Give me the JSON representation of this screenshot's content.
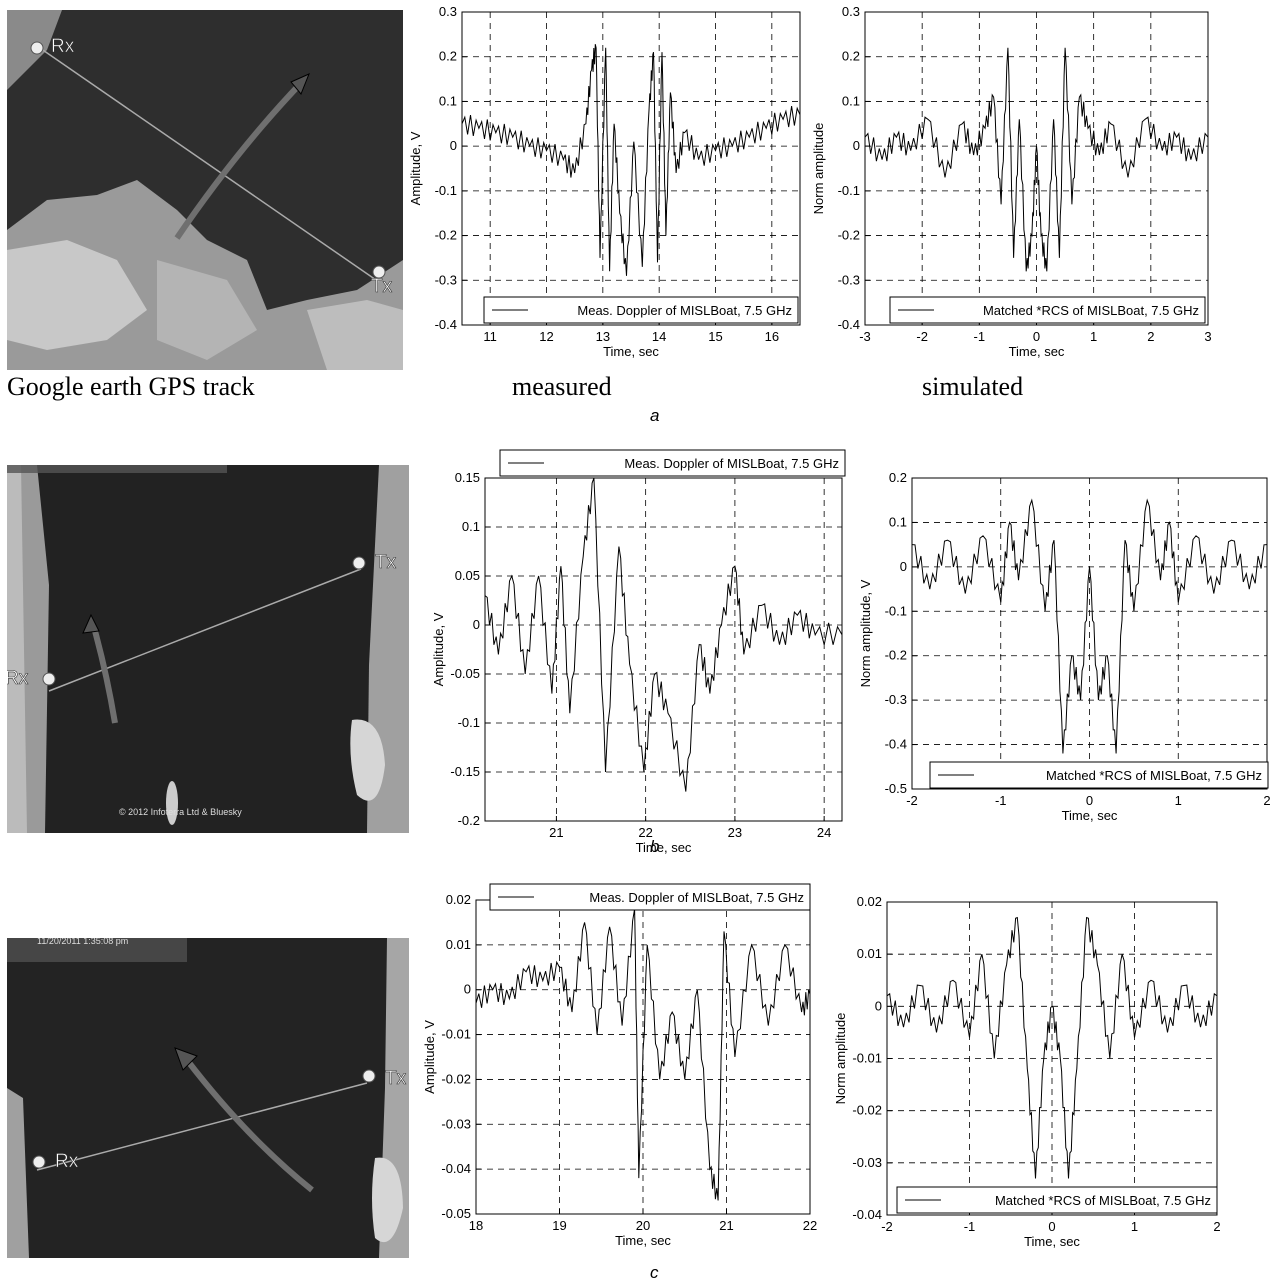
{
  "captions": {
    "map": "Google earth GPS track",
    "measured": "measured",
    "simulated": "simulated"
  },
  "panel_letters": [
    "a",
    "b",
    "c"
  ],
  "maps": [
    {
      "rx_label": "Rx",
      "tx_label": "Tx"
    },
    {
      "rx_label": "Rx",
      "tx_label": "Tx",
      "copyright": "© 2012 Infoterra Ltd & Bluesky"
    },
    {
      "rx_label": "Rx",
      "tx_label": "Tx",
      "timestamp": "11/20/2011   1:35:08 pm"
    }
  ],
  "chart_data": [
    {
      "id": "a-measured",
      "type": "line",
      "xlabel": "Time, sec",
      "ylabel": "Amplitude, V",
      "xlim": [
        10.5,
        16.5
      ],
      "ylim": [
        -0.4,
        0.3
      ],
      "xticks": [
        11,
        12,
        13,
        14,
        15,
        16
      ],
      "xtick_labels": [
        "11",
        "12",
        "13",
        "14",
        "15",
        "16"
      ],
      "yticks": [
        -0.4,
        -0.3,
        -0.2,
        -0.1,
        0,
        0.1,
        0.2,
        0.3
      ],
      "ytick_labels": [
        "-0.4",
        "-0.3",
        "-0.2",
        "-0.1",
        "0",
        "0.1",
        "0.2",
        "0.3"
      ],
      "grid": true,
      "legend_position": "bottom-right",
      "series": [
        {
          "name": "Meas. Doppler of MISLBoat, 7.5 GHz",
          "x": [
            10.5,
            10.8,
            11.1,
            11.4,
            11.7,
            12.0,
            12.3,
            12.5,
            12.7,
            12.8,
            12.88,
            12.95,
            13.05,
            13.12,
            13.2,
            13.3,
            13.42,
            13.55,
            13.7,
            13.82,
            13.9,
            13.97,
            14.05,
            14.12,
            14.2,
            14.3,
            14.45,
            14.7,
            15.0,
            15.3,
            15.6,
            15.9,
            16.2,
            16.5
          ],
          "y": [
            0.05,
            0.04,
            0.03,
            0.02,
            0.0,
            -0.01,
            -0.03,
            -0.06,
            0.05,
            0.17,
            0.22,
            -0.25,
            0.22,
            -0.28,
            0.05,
            -0.15,
            -0.29,
            0.01,
            -0.27,
            0.08,
            0.21,
            -0.26,
            0.21,
            -0.2,
            0.12,
            -0.06,
            0.03,
            -0.03,
            -0.01,
            0.0,
            0.02,
            0.04,
            0.06,
            0.07
          ]
        }
      ]
    },
    {
      "id": "a-simulated",
      "type": "line",
      "xlabel": "Time, sec",
      "ylabel": "Norm amplitude",
      "xlim": [
        -3,
        3
      ],
      "ylim": [
        -0.4,
        0.3
      ],
      "xticks": [
        -3,
        -2,
        -1,
        0,
        1,
        2,
        3
      ],
      "xtick_labels": [
        "-3",
        "-2",
        "-1",
        "0",
        "1",
        "2",
        "3"
      ],
      "yticks": [
        -0.4,
        -0.3,
        -0.2,
        -0.1,
        0,
        0.1,
        0.2,
        0.3
      ],
      "ytick_labels": [
        "-0.4",
        "-0.3",
        "-0.2",
        "-0.1",
        "0",
        "0.1",
        "0.2",
        "0.3"
      ],
      "grid": true,
      "legend_position": "bottom-right",
      "series": [
        {
          "name": "Matched *RCS of MISLBoat, 7.5 GHz",
          "x": [
            -3.0,
            -2.7,
            -2.45,
            -2.2,
            -1.9,
            -1.6,
            -1.3,
            -1.1,
            -0.9,
            -0.75,
            -0.62,
            -0.5,
            -0.4,
            -0.3,
            -0.18,
            -0.08,
            0.0,
            0.08,
            0.18,
            0.3,
            0.4,
            0.5,
            0.62,
            0.75,
            0.9,
            1.1,
            1.3,
            1.6,
            1.9,
            2.2,
            2.45,
            2.7,
            3.0
          ],
          "y": [
            0.02,
            -0.03,
            0.02,
            -0.01,
            0.06,
            -0.07,
            0.05,
            -0.02,
            0.04,
            0.11,
            -0.13,
            0.22,
            -0.25,
            0.06,
            -0.28,
            -0.2,
            0.0,
            -0.2,
            -0.28,
            0.06,
            -0.25,
            0.22,
            -0.13,
            0.11,
            0.04,
            -0.02,
            0.05,
            -0.07,
            0.06,
            -0.01,
            0.02,
            -0.03,
            0.02
          ]
        }
      ]
    },
    {
      "id": "b-measured",
      "type": "line",
      "xlabel": "Time, sec",
      "ylabel": "Amplitude, V",
      "xlim": [
        20.2,
        24.2
      ],
      "ylim": [
        -0.2,
        0.15
      ],
      "xticks": [
        21,
        22,
        23,
        24
      ],
      "xtick_labels": [
        "21",
        "22",
        "23",
        "24"
      ],
      "yticks": [
        -0.2,
        -0.15,
        -0.1,
        -0.05,
        0,
        0.05,
        0.1,
        0.15
      ],
      "ytick_labels": [
        "-0.2",
        "-0.15",
        "-0.1",
        "-0.05",
        "0",
        "0.05",
        "0.1",
        "0.15"
      ],
      "grid": true,
      "legend_position": "top",
      "series": [
        {
          "name": "Meas. Doppler of MISLBoat, 7.5 GHz",
          "x": [
            20.2,
            20.35,
            20.5,
            20.65,
            20.8,
            20.95,
            21.05,
            21.15,
            21.3,
            21.42,
            21.55,
            21.7,
            21.82,
            21.98,
            22.1,
            22.25,
            22.45,
            22.6,
            22.72,
            22.85,
            23.0,
            23.1,
            23.3,
            23.5,
            23.7,
            23.9,
            24.2
          ],
          "y": [
            0.03,
            -0.03,
            0.05,
            -0.05,
            0.05,
            -0.07,
            0.06,
            -0.09,
            0.07,
            0.15,
            -0.15,
            0.08,
            -0.04,
            -0.15,
            -0.05,
            -0.09,
            -0.17,
            -0.02,
            -0.07,
            0.0,
            0.06,
            -0.03,
            0.02,
            -0.02,
            0.01,
            -0.01,
            -0.01
          ]
        }
      ]
    },
    {
      "id": "b-simulated",
      "type": "line",
      "xlabel": "Time, sec",
      "ylabel": "Norm amplitude, V",
      "xlim": [
        -2,
        2
      ],
      "ylim": [
        -0.5,
        0.2
      ],
      "xticks": [
        -2,
        -1,
        0,
        1,
        2
      ],
      "xtick_labels": [
        "-2",
        "-1",
        "0",
        "1",
        "2"
      ],
      "yticks": [
        -0.5,
        -0.4,
        -0.3,
        -0.2,
        -0.1,
        0,
        0.1,
        0.2
      ],
      "ytick_labels": [
        "-0.5",
        "-0.4",
        "-0.3",
        "-0.2",
        "-0.1",
        "0",
        "0.1",
        "0.2"
      ],
      "grid": true,
      "legend_position": "bottom-right",
      "series": [
        {
          "name": "Matched *RCS of MISLBoat, 7.5 GHz",
          "x": [
            -2.0,
            -1.8,
            -1.6,
            -1.4,
            -1.2,
            -1.0,
            -0.9,
            -0.8,
            -0.65,
            -0.5,
            -0.4,
            -0.3,
            -0.2,
            -0.1,
            0.0,
            0.1,
            0.2,
            0.3,
            0.4,
            0.5,
            0.65,
            0.8,
            0.9,
            1.0,
            1.2,
            1.4,
            1.6,
            1.8,
            2.0
          ],
          "y": [
            0.05,
            -0.05,
            0.06,
            -0.06,
            0.07,
            -0.08,
            0.1,
            -0.03,
            0.15,
            -0.1,
            0.06,
            -0.42,
            -0.2,
            -0.3,
            0.0,
            -0.3,
            -0.2,
            -0.42,
            0.06,
            -0.1,
            0.15,
            -0.03,
            0.1,
            -0.08,
            0.07,
            -0.06,
            0.06,
            -0.05,
            0.05
          ]
        }
      ]
    },
    {
      "id": "c-measured",
      "type": "line",
      "xlabel": "Time, sec",
      "ylabel": "Amplitude, V",
      "xlim": [
        18,
        22
      ],
      "ylim": [
        -0.05,
        0.02
      ],
      "xticks": [
        18,
        19,
        20,
        21,
        22
      ],
      "xtick_labels": [
        "18",
        "19",
        "20",
        "21",
        "22"
      ],
      "yticks": [
        -0.05,
        -0.04,
        -0.03,
        -0.02,
        -0.01,
        0,
        0.01,
        0.02
      ],
      "ytick_labels": [
        "-0.05",
        "-0.04",
        "-0.03",
        "-0.02",
        "-0.01",
        "0",
        "0.01",
        "0.02"
      ],
      "grid": true,
      "legend_position": "top",
      "series": [
        {
          "name": "Meas. Doppler of MISLBoat, 7.5 GHz",
          "x": [
            18.0,
            18.2,
            18.4,
            18.6,
            18.8,
            19.0,
            19.15,
            19.3,
            19.45,
            19.6,
            19.75,
            19.9,
            19.95,
            20.05,
            20.2,
            20.35,
            20.5,
            20.65,
            20.8,
            20.9,
            20.97,
            21.1,
            21.3,
            21.5,
            21.7,
            21.9,
            22.0
          ],
          "y": [
            -0.003,
            0.0,
            -0.002,
            0.004,
            0.002,
            0.005,
            -0.005,
            0.015,
            -0.01,
            0.014,
            -0.008,
            0.018,
            -0.042,
            0.01,
            -0.02,
            -0.005,
            -0.02,
            0.0,
            -0.04,
            -0.047,
            0.013,
            -0.015,
            0.01,
            -0.008,
            0.01,
            -0.005,
            -0.001
          ]
        }
      ]
    },
    {
      "id": "c-simulated",
      "type": "line",
      "xlabel": "Time, sec",
      "ylabel": "Norm amplitude",
      "xlim": [
        -2,
        2
      ],
      "ylim": [
        -0.04,
        0.02
      ],
      "xticks": [
        -2,
        -1,
        0,
        1,
        2
      ],
      "xtick_labels": [
        "-2",
        "-1",
        "0",
        "1",
        "2"
      ],
      "yticks": [
        -0.04,
        -0.03,
        -0.02,
        -0.01,
        0,
        0.01,
        0.02
      ],
      "ytick_labels": [
        "-0.04",
        "-0.03",
        "-0.02",
        "-0.01",
        "0",
        "0.01",
        "0.02"
      ],
      "grid": true,
      "legend_position": "bottom-right",
      "series": [
        {
          "name": "Matched *RCS of MISLBoat, 7.5 GHz",
          "x": [
            -2.0,
            -1.8,
            -1.6,
            -1.4,
            -1.2,
            -1.0,
            -0.85,
            -0.7,
            -0.55,
            -0.42,
            -0.3,
            -0.2,
            -0.1,
            0.0,
            0.1,
            0.2,
            0.3,
            0.42,
            0.55,
            0.7,
            0.85,
            1.0,
            1.2,
            1.4,
            1.6,
            1.8,
            2.0
          ],
          "y": [
            0.002,
            -0.004,
            0.004,
            -0.005,
            0.005,
            -0.006,
            0.01,
            -0.01,
            0.008,
            0.017,
            -0.012,
            -0.033,
            -0.01,
            0.0,
            -0.01,
            -0.033,
            -0.012,
            0.017,
            0.008,
            -0.01,
            0.01,
            -0.006,
            0.005,
            -0.005,
            0.004,
            -0.004,
            0.002
          ]
        }
      ]
    }
  ],
  "colors": {
    "line": "#000000",
    "grid": "#000000",
    "map_sea": "#2b2b2b",
    "map_land": "#9a9a9a"
  }
}
